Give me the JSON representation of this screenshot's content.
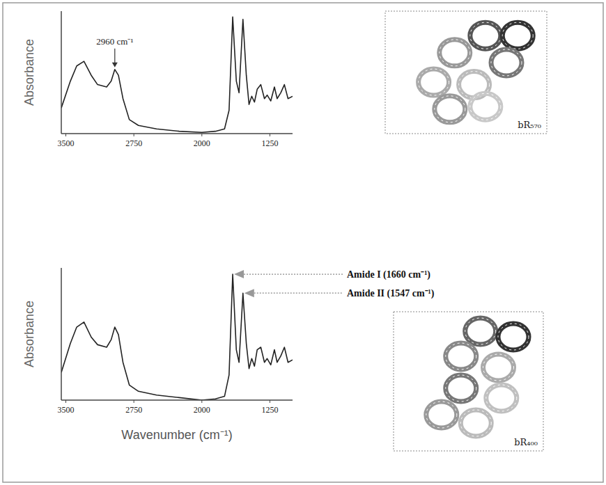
{
  "chart_data": [
    {
      "type": "line",
      "y_label": "Absorbance",
      "x": [
        3550,
        3450,
        3380,
        3300,
        3220,
        3150,
        3050,
        3000,
        2960,
        2920,
        2870,
        2800,
        2700,
        2500,
        2250,
        2000,
        1850,
        1750,
        1700,
        1660,
        1620,
        1590,
        1547,
        1510,
        1480,
        1450,
        1420,
        1390,
        1350,
        1310,
        1280,
        1240,
        1200,
        1170,
        1130,
        1090,
        1050,
        1000
      ],
      "values": [
        0.22,
        0.45,
        0.58,
        0.62,
        0.5,
        0.42,
        0.4,
        0.45,
        0.55,
        0.5,
        0.3,
        0.12,
        0.07,
        0.04,
        0.02,
        0.01,
        0.02,
        0.04,
        0.2,
        1.0,
        0.45,
        0.35,
        0.98,
        0.5,
        0.25,
        0.32,
        0.27,
        0.38,
        0.42,
        0.3,
        0.33,
        0.28,
        0.4,
        0.3,
        0.35,
        0.42,
        0.3,
        0.32
      ],
      "color": "#222222",
      "xlim": [
        3550,
        1000
      ],
      "xticks": [
        3500,
        2750,
        2000,
        1250
      ],
      "ylim": [
        0,
        1.05
      ],
      "tick_labels": "x",
      "grid": false,
      "annotations": [
        {
          "text": "2960 cm⁻¹",
          "x": 2960,
          "y": 0.55
        }
      ],
      "inset_label": "bR₅₇₀"
    },
    {
      "type": "line",
      "y_label": "Absorbance",
      "x_label": "Wavenumber (cm⁻¹)",
      "x": [
        3550,
        3450,
        3380,
        3300,
        3220,
        3150,
        3050,
        3000,
        2960,
        2920,
        2870,
        2800,
        2700,
        2500,
        2250,
        2000,
        1850,
        1750,
        1700,
        1660,
        1620,
        1590,
        1547,
        1510,
        1480,
        1450,
        1420,
        1390,
        1350,
        1310,
        1280,
        1240,
        1200,
        1170,
        1130,
        1090,
        1050,
        1000
      ],
      "values": [
        0.22,
        0.45,
        0.58,
        0.62,
        0.5,
        0.44,
        0.42,
        0.48,
        0.58,
        0.52,
        0.3,
        0.12,
        0.07,
        0.04,
        0.02,
        0.0,
        0.01,
        0.03,
        0.2,
        1.0,
        0.4,
        0.3,
        0.85,
        0.45,
        0.25,
        0.33,
        0.27,
        0.4,
        0.42,
        0.3,
        0.33,
        0.28,
        0.4,
        0.3,
        0.35,
        0.42,
        0.3,
        0.32
      ],
      "color": "#222222",
      "xlim": [
        3550,
        1000
      ],
      "xticks": [
        3500,
        2750,
        2000,
        1250
      ],
      "ylim": [
        0,
        1.05
      ],
      "tick_labels": "x",
      "grid": false,
      "annotations": [
        {
          "text": "Amide I (1660 cm⁻¹)",
          "x": 1660,
          "y": 1.0
        },
        {
          "text": "Amide II (1547 cm⁻¹)",
          "x": 1547,
          "y": 0.85
        }
      ],
      "inset_label": "bR₄₀₀"
    }
  ]
}
